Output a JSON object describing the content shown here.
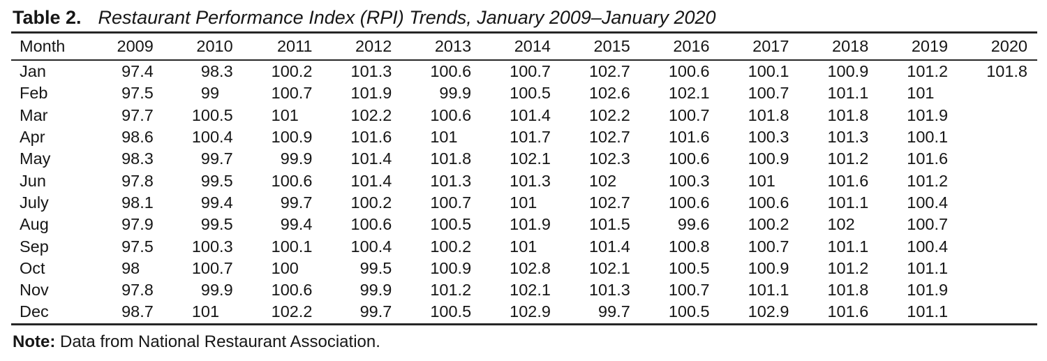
{
  "table": {
    "label": "Table 2.",
    "title": "Restaurant Performance Index (RPI) Trends, January 2009–January 2020",
    "columns": [
      "Month",
      "2009",
      "2010",
      "2011",
      "2012",
      "2013",
      "2014",
      "2015",
      "2016",
      "2017",
      "2018",
      "2019",
      "2020"
    ],
    "rows": [
      [
        "Jan",
        "97.4",
        "98.3",
        "100.2",
        "101.3",
        "100.6",
        "100.7",
        "102.7",
        "100.6",
        "100.1",
        "100.9",
        "101.2",
        "101.8"
      ],
      [
        "Feb",
        "97.5",
        "99",
        "100.7",
        "101.9",
        "99.9",
        "100.5",
        "102.6",
        "102.1",
        "100.7",
        "101.1",
        "101",
        ""
      ],
      [
        "Mar",
        "97.7",
        "100.5",
        "101",
        "102.2",
        "100.6",
        "101.4",
        "102.2",
        "100.7",
        "101.8",
        "101.8",
        "101.9",
        ""
      ],
      [
        "Apr",
        "98.6",
        "100.4",
        "100.9",
        "101.6",
        "101",
        "101.7",
        "102.7",
        "101.6",
        "100.3",
        "101.3",
        "100.1",
        ""
      ],
      [
        "May",
        "98.3",
        "99.7",
        "99.9",
        "101.4",
        "101.8",
        "102.1",
        "102.3",
        "100.6",
        "100.9",
        "101.2",
        "101.6",
        ""
      ],
      [
        "Jun",
        "97.8",
        "99.5",
        "100.6",
        "101.4",
        "101.3",
        "101.3",
        "102",
        "100.3",
        "101",
        "101.6",
        "101.2",
        ""
      ],
      [
        "July",
        "98.1",
        "99.4",
        "99.7",
        "100.2",
        "100.7",
        "101",
        "102.7",
        "100.6",
        "100.6",
        "101.1",
        "100.4",
        ""
      ],
      [
        "Aug",
        "97.9",
        "99.5",
        "99.4",
        "100.6",
        "100.5",
        "101.9",
        "101.5",
        "99.6",
        "100.2",
        "102",
        "100.7",
        ""
      ],
      [
        "Sep",
        "97.5",
        "100.3",
        "100.1",
        "100.4",
        "100.2",
        "101",
        "101.4",
        "100.8",
        "100.7",
        "101.1",
        "100.4",
        ""
      ],
      [
        "Oct",
        "98",
        "100.7",
        "100",
        "99.5",
        "100.9",
        "102.8",
        "102.1",
        "100.5",
        "100.9",
        "101.2",
        "101.1",
        ""
      ],
      [
        "Nov",
        "97.8",
        "99.9",
        "100.6",
        "99.9",
        "101.2",
        "102.1",
        "101.3",
        "100.7",
        "101.1",
        "101.8",
        "101.9",
        ""
      ],
      [
        "Dec",
        "98.7",
        "101",
        "102.2",
        "99.7",
        "100.5",
        "102.9",
        "99.7",
        "100.5",
        "102.9",
        "101.6",
        "101.1",
        ""
      ]
    ],
    "note_label": "Note:",
    "note_text": " Data from National Restaurant Association."
  },
  "colors": {
    "background": "#ffffff",
    "text": "#161616",
    "rule": "#262626"
  }
}
